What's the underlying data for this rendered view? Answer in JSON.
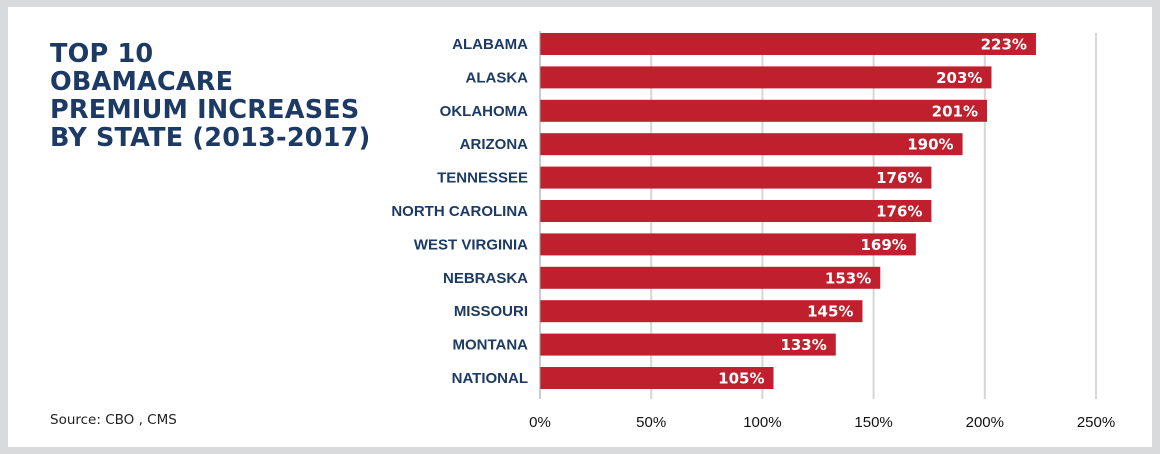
{
  "title": "TOP 10\nOBAMACARE\nPREMIUM INCREASES\nBY STATE (2013-2017)",
  "source": "Source: CBO , CMS",
  "colors": {
    "bar": "#c0202d",
    "grid": "#d6d6d6",
    "title": "#1c3a63",
    "background": "#ffffff",
    "frame": "#d9dadb"
  },
  "chart_data": {
    "type": "bar",
    "orientation": "horizontal",
    "categories": [
      "ALABAMA",
      "ALASKA",
      "OKLAHOMA",
      "ARIZONA",
      "TENNESSEE",
      "NORTH CAROLINA",
      "WEST VIRGINIA",
      "NEBRASKA",
      "MISSOURI",
      "MONTANA",
      "NATIONAL"
    ],
    "values": [
      223,
      203,
      201,
      190,
      176,
      176,
      169,
      153,
      145,
      133,
      105
    ],
    "value_labels": [
      "223%",
      "203%",
      "201%",
      "190%",
      "176%",
      "176%",
      "169%",
      "153%",
      "145%",
      "133%",
      "105%"
    ],
    "ticks": [
      0,
      50,
      100,
      150,
      200,
      250
    ],
    "tick_labels": [
      "0%",
      "50%",
      "100%",
      "150%",
      "200%",
      "250%"
    ],
    "xlim": [
      0,
      250
    ],
    "grid": true,
    "legend": "none",
    "title": "TOP 10 OBAMACARE PREMIUM INCREASES BY STATE (2013-2017)",
    "xlabel": "",
    "ylabel": ""
  }
}
